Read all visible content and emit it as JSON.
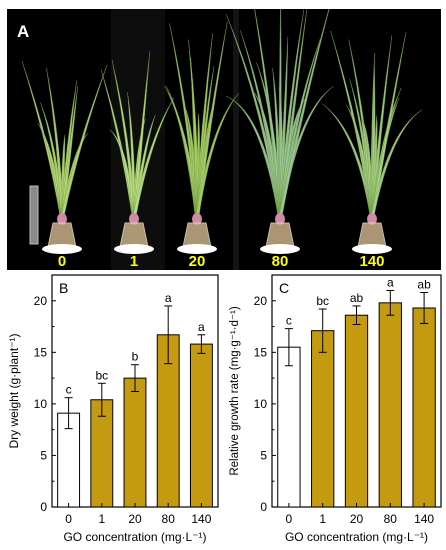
{
  "photo": {
    "panel_label": "A",
    "pot_labels": [
      "0",
      "1",
      "20",
      "80",
      "140"
    ],
    "label_color": "#ffff00",
    "background_color": "#000000"
  },
  "colors": {
    "control_fill": "#ffffff",
    "treatment_fill": "#c49a10",
    "bar_stroke": "#000000"
  },
  "chart_data": [
    {
      "type": "bar",
      "panel_label": "B",
      "categories": [
        "0",
        "1",
        "20",
        "80",
        "140"
      ],
      "values": [
        9.1,
        10.4,
        12.5,
        16.7,
        15.8
      ],
      "errors": [
        1.5,
        1.6,
        1.3,
        2.8,
        0.9
      ],
      "significance_letters": [
        "c",
        "bc",
        "b",
        "a",
        "a"
      ],
      "xlabel": "GO concentration (mg·L⁻¹)",
      "ylabel": "Dry weight (g·plant⁻¹)",
      "ylim": [
        0,
        22.5
      ],
      "yticks": [
        "0",
        "5",
        "10",
        "15",
        "20"
      ]
    },
    {
      "type": "bar",
      "panel_label": "C",
      "categories": [
        "0",
        "1",
        "20",
        "80",
        "140"
      ],
      "values": [
        15.5,
        17.1,
        18.6,
        19.8,
        19.3
      ],
      "errors": [
        1.8,
        2.1,
        0.9,
        1.2,
        1.5
      ],
      "significance_letters": [
        "c",
        "bc",
        "ab",
        "a",
        "ab"
      ],
      "xlabel": "GO concentration (mg·L⁻¹)",
      "ylabel": "Relative growth rate (mg·g⁻¹·d⁻¹)",
      "ylim": [
        0,
        22.5
      ],
      "yticks": [
        "0",
        "5",
        "10",
        "15",
        "20"
      ]
    }
  ]
}
